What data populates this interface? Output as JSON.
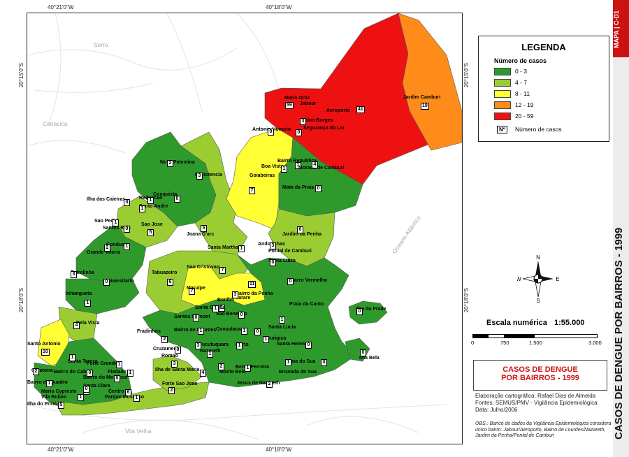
{
  "map": {
    "ticks": {
      "top": [
        "40°21'0\"W",
        "40°18'0\"W"
      ],
      "bottom": [
        "40°21'0\"W",
        "40°18'0\"W"
      ],
      "left": [
        "20°15'0\"S",
        "20°18'0\"S"
      ],
      "right": [
        "20°15'0\"S",
        "20°18'0\"S"
      ]
    },
    "places": [
      "Serra",
      "Cariacica",
      "Vila Velha",
      "Oceano Atlântico"
    ],
    "neighborhoods": [
      {
        "name": "Maria Ortiz",
        "cases": "59"
      },
      {
        "name": "Jabour",
        "cases": ""
      },
      {
        "name": "Aeroporto",
        "cases": "41"
      },
      {
        "name": "Jardim Camburi",
        "cases": "19"
      },
      {
        "name": "Solon Borges",
        "cases": "3"
      },
      {
        "name": "Antonio Honorio",
        "cases": "0"
      },
      {
        "name": "Segurança do Lar",
        "cases": "0"
      },
      {
        "name": "Nova Palestina",
        "cases": "2"
      },
      {
        "name": "Resistencia",
        "cases": "3"
      },
      {
        "name": "Boa Vista",
        "cases": "1"
      },
      {
        "name": "Goiabeiras",
        "cases": "7"
      },
      {
        "name": "Bairro Republica",
        "cases": "1"
      },
      {
        "name": "Morada de Camburi",
        "cases": "4"
      },
      {
        "name": "Mata da Praia",
        "cases": "0"
      },
      {
        "name": "Ilha das Caieiras",
        "cases": "0"
      },
      {
        "name": "Redencao",
        "cases": "1"
      },
      {
        "name": "Conquista",
        "cases": "0"
      },
      {
        "name": "Santo Andre",
        "cases": "1"
      },
      {
        "name": "Sao Pedro",
        "cases": "1"
      },
      {
        "name": "Santos Reis",
        "cases": "0"
      },
      {
        "name": "Sao Jose",
        "cases": "5"
      },
      {
        "name": "Joana D'arc",
        "cases": "5"
      },
      {
        "name": "Jardim da Penha",
        "cases": "6"
      },
      {
        "name": "Condusa",
        "cases": "1"
      },
      {
        "name": "Grande Vitoria",
        "cases": "2"
      },
      {
        "name": "Santa Martha",
        "cases": "1"
      },
      {
        "name": "Andorinhas",
        "cases": "3"
      },
      {
        "name": "Pontal de Camburi",
        "cases": ""
      },
      {
        "name": "Santa Luiza",
        "cases": "0"
      },
      {
        "name": "Estrelinha",
        "cases": "3"
      },
      {
        "name": "Universitario",
        "cases": "0"
      },
      {
        "name": "Tabuazeiro",
        "cases": "6"
      },
      {
        "name": "Sao Cristovao",
        "cases": "7"
      },
      {
        "name": "Maruipe",
        "cases": "11"
      },
      {
        "name": "Itarare",
        "cases": "7"
      },
      {
        "name": "Barro Vermelho",
        "cases": "0"
      },
      {
        "name": "Inhangueta",
        "cases": "1"
      },
      {
        "name": "Bairro da Penha",
        "cases": "3"
      },
      {
        "name": "Bonfim",
        "cases": "1"
      },
      {
        "name": "Santa Cecilia",
        "cases": "1"
      },
      {
        "name": "Praia do Canto",
        "cases": "1"
      },
      {
        "name": "Ilha do Frade",
        "cases": "0"
      },
      {
        "name": "Bela Vista",
        "cases": "4"
      },
      {
        "name": "Santos Dumont",
        "cases": "0"
      },
      {
        "name": "Sao Benedito",
        "cases": "0"
      },
      {
        "name": "Fradinhos",
        "cases": "2"
      },
      {
        "name": "Bairro de Lourdes",
        "cases": "1"
      },
      {
        "name": "Consolacao",
        "cases": "1"
      },
      {
        "name": "Santa Lucia",
        "cases": "0"
      },
      {
        "name": "Gurigica",
        "cases": "1"
      },
      {
        "name": "Santo Antonio",
        "cases": "10"
      },
      {
        "name": "Cruzamento",
        "cases": "0"
      },
      {
        "name": "Romao",
        "cases": "3"
      },
      {
        "name": "Jucutuquara",
        "cases": "3"
      },
      {
        "name": "Nazareth",
        "cases": "1"
      },
      {
        "name": "Horto",
        "cases": "1"
      },
      {
        "name": "Santa Helena",
        "cases": "0"
      },
      {
        "name": "Santa Tereza",
        "cases": "1"
      },
      {
        "name": "Forte Grande",
        "cases": "1"
      },
      {
        "name": "Caratoira",
        "cases": "2"
      },
      {
        "name": "Bairro do Cabral",
        "cases": "0"
      },
      {
        "name": "Piedade",
        "cases": "1"
      },
      {
        "name": "Ilha de Santa Maria",
        "cases": "4"
      },
      {
        "name": "Monte Belo",
        "cases": "2"
      },
      {
        "name": "Bento Ferreira",
        "cases": "1"
      },
      {
        "name": "Praia do Sua",
        "cases": "1"
      },
      {
        "name": "Ilha Bela",
        "cases": "0"
      },
      {
        "name": "Bairro do Quadro",
        "cases": "1"
      },
      {
        "name": "Bairro do Moscoso",
        "cases": "0"
      },
      {
        "name": "Santa Clara",
        "cases": "0"
      },
      {
        "name": "Forte Sao Joao",
        "cases": "2"
      },
      {
        "name": "Enseada do Sua",
        "cases": "0"
      },
      {
        "name": "Mario Cypreste",
        "cases": "0"
      },
      {
        "name": "Vila Rubim",
        "cases": "1"
      },
      {
        "name": "Centro",
        "cases": "6"
      },
      {
        "name": "Parque Moscoso",
        "cases": "1"
      },
      {
        "name": "Jesus de Nazareth",
        "cases": "2"
      },
      {
        "name": "Ilha do Principe",
        "cases": "5"
      }
    ]
  },
  "legend": {
    "title": "LEGENDA",
    "subtitle": "Número de casos",
    "items": [
      {
        "label": "0 - 3",
        "color": "#2f9a2c"
      },
      {
        "label": "4 - 7",
        "color": "#9acd32"
      },
      {
        "label": "8 - 11",
        "color": "#ffff33"
      },
      {
        "label": "12 - 19",
        "color": "#ff8c1a"
      },
      {
        "label": "20 - 59",
        "color": "#ee1111"
      }
    ],
    "count_symbol": "Nº",
    "count_label": "Número de casos"
  },
  "scale": {
    "label": "Escala numérica",
    "value": "1:55.000",
    "ticks": [
      "0",
      "750",
      "1.500",
      "3.000"
    ]
  },
  "title": {
    "line1": "CASOS DE DENGUE",
    "line2": "POR BAIRROS - 1999"
  },
  "credits": [
    "Elaboração cartográfica: Rafael Dias de Almeida",
    "Fontes: SEMUS/PMV - Vigilância Epidemiológica",
    "Data: Julho/2006"
  ],
  "obs": "OBS.: Banco de dados da Vigilância Epidemiológica considera único bairro: Jabour/Aeroporto, Bairro de Lourdes/Nazareth, Jardim da Penha/Pontal de Camburi",
  "side": {
    "code": "MAPA | C-D1",
    "title": "CASOS DE DENGUE POR BAIRROS - 1999"
  },
  "compass": {
    "n": "N",
    "s": "S",
    "e": "E",
    "w": "W"
  },
  "colors": {
    "green": "#2f9a2c",
    "lightgreen": "#9acd32",
    "yellow": "#ffff33",
    "orange": "#ff8c1a",
    "red": "#ee1111",
    "accent": "#cc1111"
  }
}
